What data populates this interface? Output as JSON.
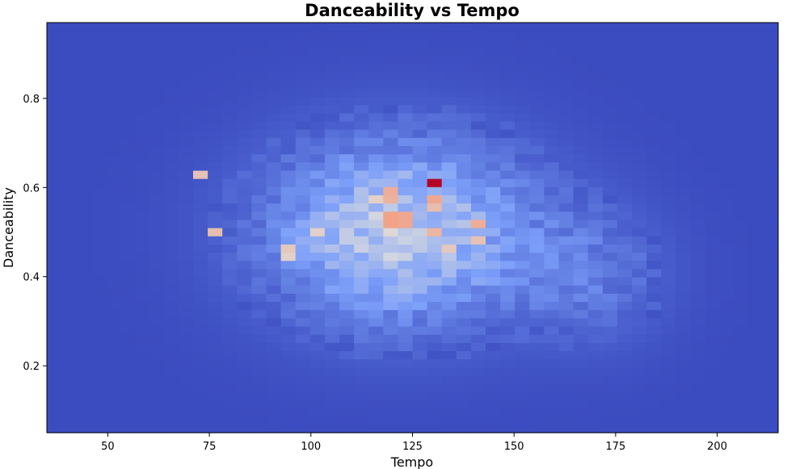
{
  "chart_data": {
    "type": "heatmap",
    "title": "Danceability vs Tempo",
    "xlabel": "Tempo",
    "ylabel": "Danceability",
    "xlim": [
      35,
      215
    ],
    "ylim": [
      0.05,
      0.97
    ],
    "xticks": [
      50,
      75,
      100,
      125,
      150,
      175,
      200
    ],
    "yticks": [
      0.2,
      0.4,
      0.6,
      0.8
    ],
    "xtick_labels": [
      "50",
      "75",
      "100",
      "125",
      "150",
      "175",
      "200"
    ],
    "ytick_labels": [
      "0.2",
      "0.4",
      "0.6",
      "0.8"
    ],
    "colormap": "coolwarm",
    "grid": false,
    "bins": {
      "x": 50,
      "y": 50
    },
    "density": {
      "description_of_distribution": "2D histogram of track counts; concentrated around tempo 90-150 and danceability 0.3-0.7",
      "cluster_centers": [
        {
          "tempo": 120,
          "danceability": 0.55,
          "relative_density": 0.75
        },
        {
          "tempo": 130.5,
          "danceability": 0.61,
          "relative_density": 1.0
        },
        {
          "tempo": 75,
          "danceability": 0.5,
          "relative_density": 0.6
        },
        {
          "tempo": 72,
          "danceability": 0.63,
          "relative_density": 0.6
        },
        {
          "tempo": 142,
          "danceability": 0.5,
          "relative_density": 0.65
        },
        {
          "tempo": 95,
          "danceability": 0.48,
          "relative_density": 0.55
        }
      ],
      "hotspot_cells": [
        {
          "tempo": 130.5,
          "danceability": 0.61,
          "level": 1.0
        },
        {
          "tempo": 72.3,
          "danceability": 0.63,
          "level": 0.6
        },
        {
          "tempo": 75.9,
          "danceability": 0.5,
          "level": 0.62
        },
        {
          "tempo": 120.5,
          "danceability": 0.6,
          "level": 0.68
        },
        {
          "tempo": 120.5,
          "danceability": 0.58,
          "level": 0.66
        },
        {
          "tempo": 119.1,
          "danceability": 0.53,
          "level": 0.72
        },
        {
          "tempo": 123.6,
          "danceability": 0.53,
          "level": 0.7
        },
        {
          "tempo": 130.5,
          "danceability": 0.58,
          "level": 0.7
        },
        {
          "tempo": 130.5,
          "danceability": 0.55,
          "level": 0.62
        },
        {
          "tempo": 130.5,
          "danceability": 0.5,
          "level": 0.65
        },
        {
          "tempo": 141.8,
          "danceability": 0.52,
          "level": 0.68
        },
        {
          "tempo": 141.8,
          "danceability": 0.48,
          "level": 0.6
        },
        {
          "tempo": 134.3,
          "danceability": 0.47,
          "level": 0.58
        },
        {
          "tempo": 94.4,
          "danceability": 0.47,
          "level": 0.58
        },
        {
          "tempo": 94.4,
          "danceability": 0.45,
          "level": 0.55
        },
        {
          "tempo": 101.8,
          "danceability": 0.5,
          "level": 0.55
        },
        {
          "tempo": 116.5,
          "danceability": 0.58,
          "level": 0.55
        }
      ]
    }
  }
}
